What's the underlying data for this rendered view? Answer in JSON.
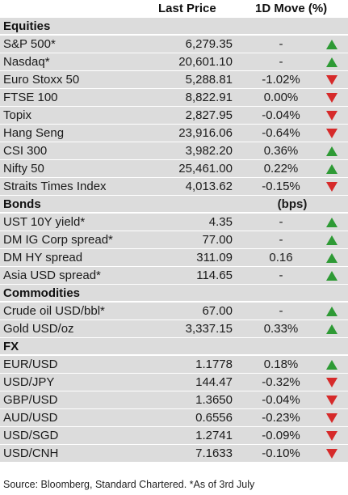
{
  "header": {
    "last_price": "Last Price",
    "move": "1D Move (%)"
  },
  "sections": [
    {
      "title": "Equities",
      "unit": "",
      "rows": [
        {
          "name": "S&P 500*",
          "price": "6,279.35",
          "move": "-",
          "dir": "up"
        },
        {
          "name": "Nasdaq*",
          "price": "20,601.10",
          "move": "-",
          "dir": "up"
        },
        {
          "name": "Euro Stoxx 50",
          "price": "5,288.81",
          "move": "-1.02%",
          "dir": "down"
        },
        {
          "name": "FTSE 100",
          "price": "8,822.91",
          "move": "0.00%",
          "dir": "down"
        },
        {
          "name": "Topix",
          "price": "2,827.95",
          "move": "-0.04%",
          "dir": "down"
        },
        {
          "name": "Hang Seng",
          "price": "23,916.06",
          "move": "-0.64%",
          "dir": "down"
        },
        {
          "name": "CSI 300",
          "price": "3,982.20",
          "move": "0.36%",
          "dir": "up"
        },
        {
          "name": "Nifty 50",
          "price": "25,461.00",
          "move": "0.22%",
          "dir": "up"
        },
        {
          "name": "Straits Times Index",
          "price": "4,013.62",
          "move": "-0.15%",
          "dir": "down"
        }
      ]
    },
    {
      "title": "Bonds",
      "unit": "(bps)",
      "rows": [
        {
          "name": "UST 10Y yield*",
          "price": "4.35",
          "move": "-",
          "dir": "up"
        },
        {
          "name": "DM IG Corp spread*",
          "price": "77.00",
          "move": "-",
          "dir": "up"
        },
        {
          "name": "DM HY spread",
          "price": "311.09",
          "move": "0.16",
          "dir": "up"
        },
        {
          "name": "Asia USD spread*",
          "price": "114.65",
          "move": "-",
          "dir": "up"
        }
      ]
    },
    {
      "title": "Commodities",
      "unit": "",
      "rows": [
        {
          "name": "Crude oil USD/bbl*",
          "price": "67.00",
          "move": "-",
          "dir": "up"
        },
        {
          "name": "Gold USD/oz",
          "price": "3,337.15",
          "move": "0.33%",
          "dir": "up"
        }
      ]
    },
    {
      "title": "FX",
      "unit": "",
      "rows": [
        {
          "name": "EUR/USD",
          "price": "1.1778",
          "move": "0.18%",
          "dir": "up"
        },
        {
          "name": "USD/JPY",
          "price": "144.47",
          "move": "-0.32%",
          "dir": "down"
        },
        {
          "name": "GBP/USD",
          "price": "1.3650",
          "move": "-0.04%",
          "dir": "down"
        },
        {
          "name": "AUD/USD",
          "price": "0.6556",
          "move": "-0.23%",
          "dir": "down"
        },
        {
          "name": "USD/SGD",
          "price": "1.2741",
          "move": "-0.09%",
          "dir": "down"
        },
        {
          "name": "USD/CNH",
          "price": "7.1633",
          "move": "-0.10%",
          "dir": "down"
        }
      ]
    }
  ],
  "colors": {
    "up": "#2e9a35",
    "down": "#d62a2a",
    "row_bg": "#dcdcdc"
  },
  "source": "Source: Bloomberg, Standard Chartered. *As of 3rd July"
}
